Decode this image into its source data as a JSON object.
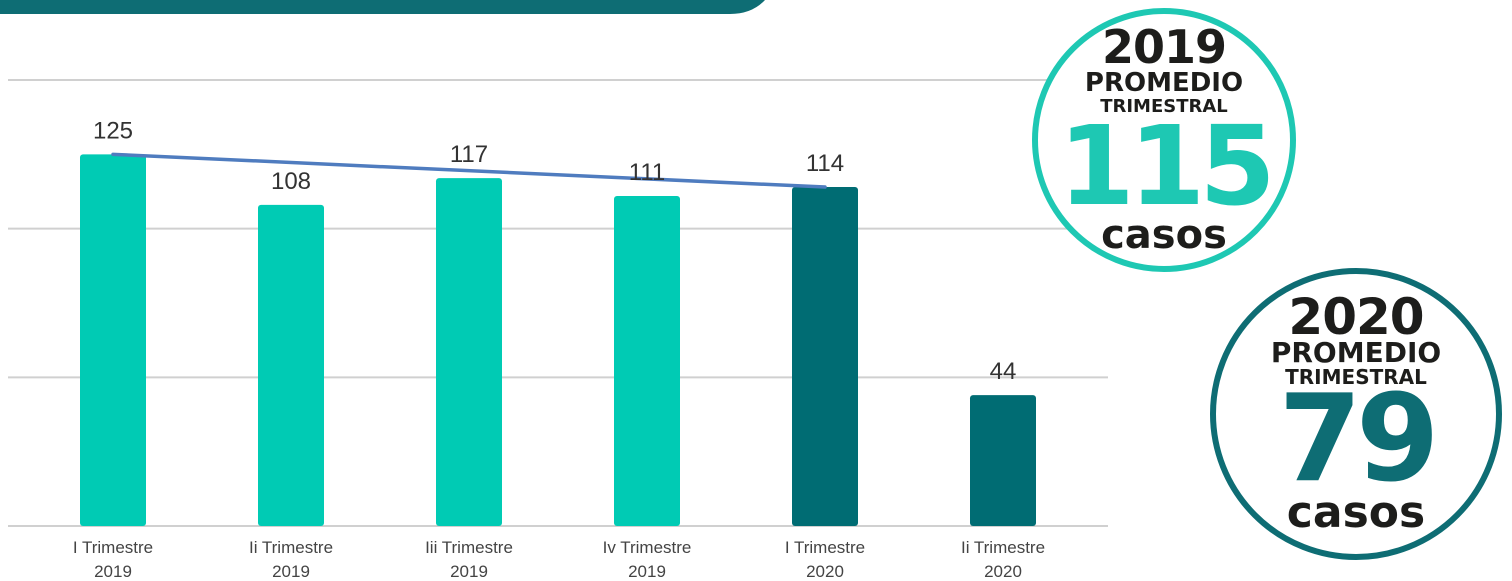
{
  "chart_data": {
    "type": "bar",
    "categories": [
      [
        "I Trimestre",
        "2019"
      ],
      [
        "Ii Trimestre",
        "2019"
      ],
      [
        "Iii Trimestre",
        "2019"
      ],
      [
        "Iv Trimestre",
        "2019"
      ],
      [
        "I Trimestre",
        "2020"
      ],
      [
        "Ii Trimestre",
        "2020"
      ]
    ],
    "values": [
      125,
      108,
      117,
      111,
      114,
      44
    ],
    "bar_colors": [
      "#00cbb4",
      "#00cbb4",
      "#00cbb4",
      "#00cbb4",
      "#006c73",
      "#006c73"
    ],
    "trend_line": {
      "from_index": 0,
      "to_index": 4,
      "start": 125,
      "end": 114,
      "color": "#4f7cbf"
    },
    "ylim": [
      0,
      150
    ],
    "gridlines": [
      0,
      50,
      100,
      150
    ],
    "grid": true,
    "title": "",
    "xlabel": "",
    "ylabel": ""
  },
  "badges": [
    {
      "year": "2019",
      "label1": "PROMEDIO",
      "label2": "TRIMESTRAL",
      "number": "115",
      "unit": "casos",
      "color": "#1ec8b3"
    },
    {
      "year": "2020",
      "label1": "PROMEDIO",
      "label2": "TRIMESTRAL",
      "number": "79",
      "unit": "casos",
      "color": "#0e6d74"
    }
  ],
  "header_bar_color": "#0e6d74"
}
